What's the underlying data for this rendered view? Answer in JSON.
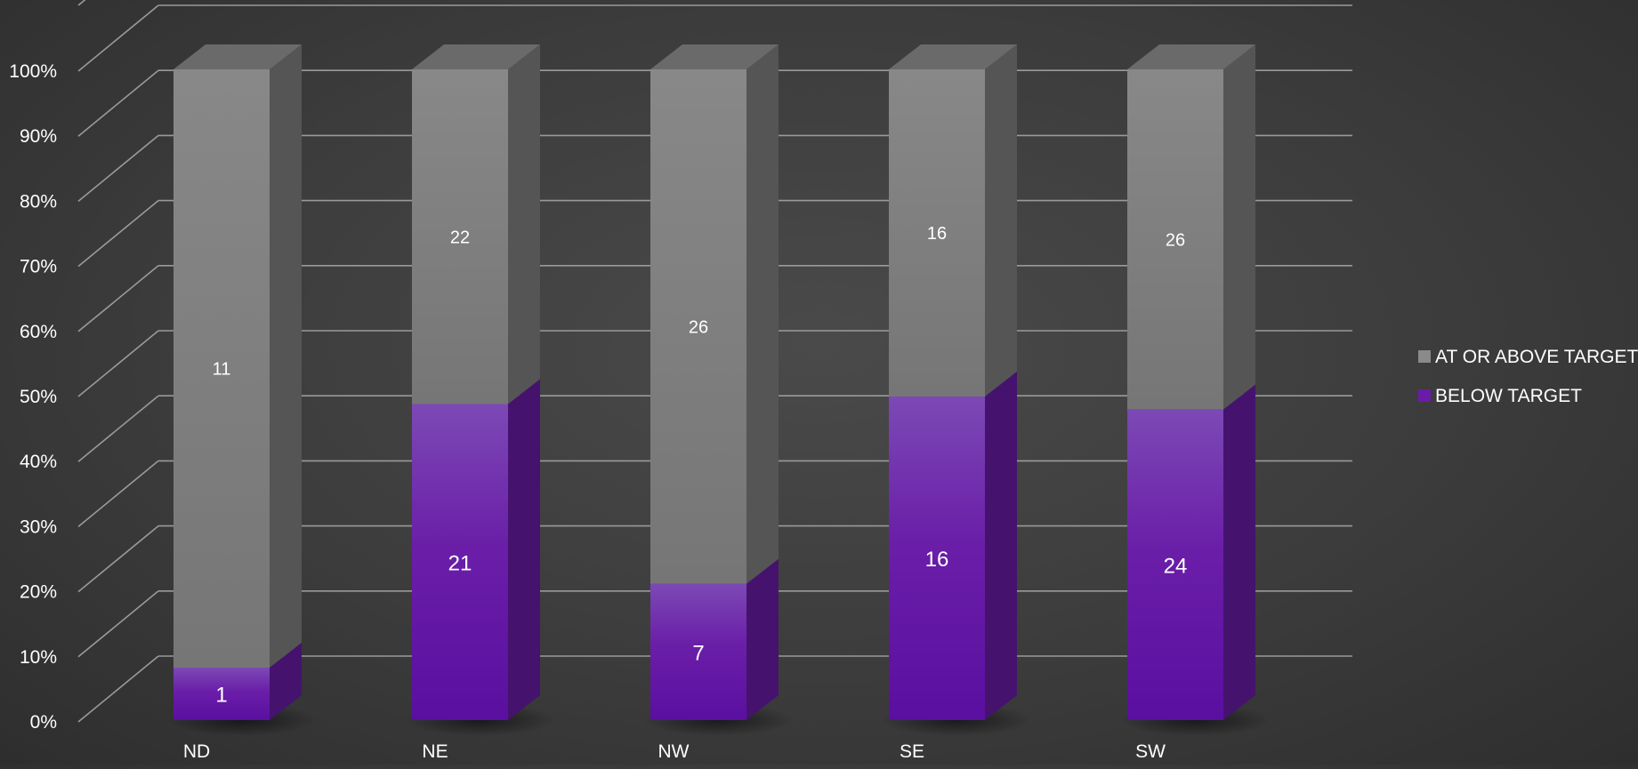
{
  "chart_data": {
    "type": "bar",
    "stacked": "percent",
    "three_d": true,
    "title": "",
    "xlabel": "",
    "ylabel": "",
    "categories": [
      "ND",
      "NE",
      "NW",
      "SE",
      "SW"
    ],
    "series": [
      {
        "name": "BELOW TARGET",
        "values": [
          1,
          21,
          7,
          16,
          24
        ],
        "color": "#6a1ba8"
      },
      {
        "name": "AT OR ABOVE TARGET",
        "values": [
          11,
          22,
          26,
          16,
          26
        ],
        "color": "#8a8a8a"
      }
    ],
    "ylim": [
      0,
      100
    ],
    "yticks": [
      "0%",
      "10%",
      "20%",
      "30%",
      "40%",
      "50%",
      "60%",
      "70%",
      "80%",
      "90%",
      "100%"
    ],
    "grid": true,
    "legend": {
      "position": "right",
      "items": [
        "AT OR ABOVE TARGET",
        "BELOW TARGET"
      ]
    },
    "colors": {
      "background": "#3a3a3a",
      "grid": "#9a9a9a",
      "text": "#ffffff"
    }
  }
}
